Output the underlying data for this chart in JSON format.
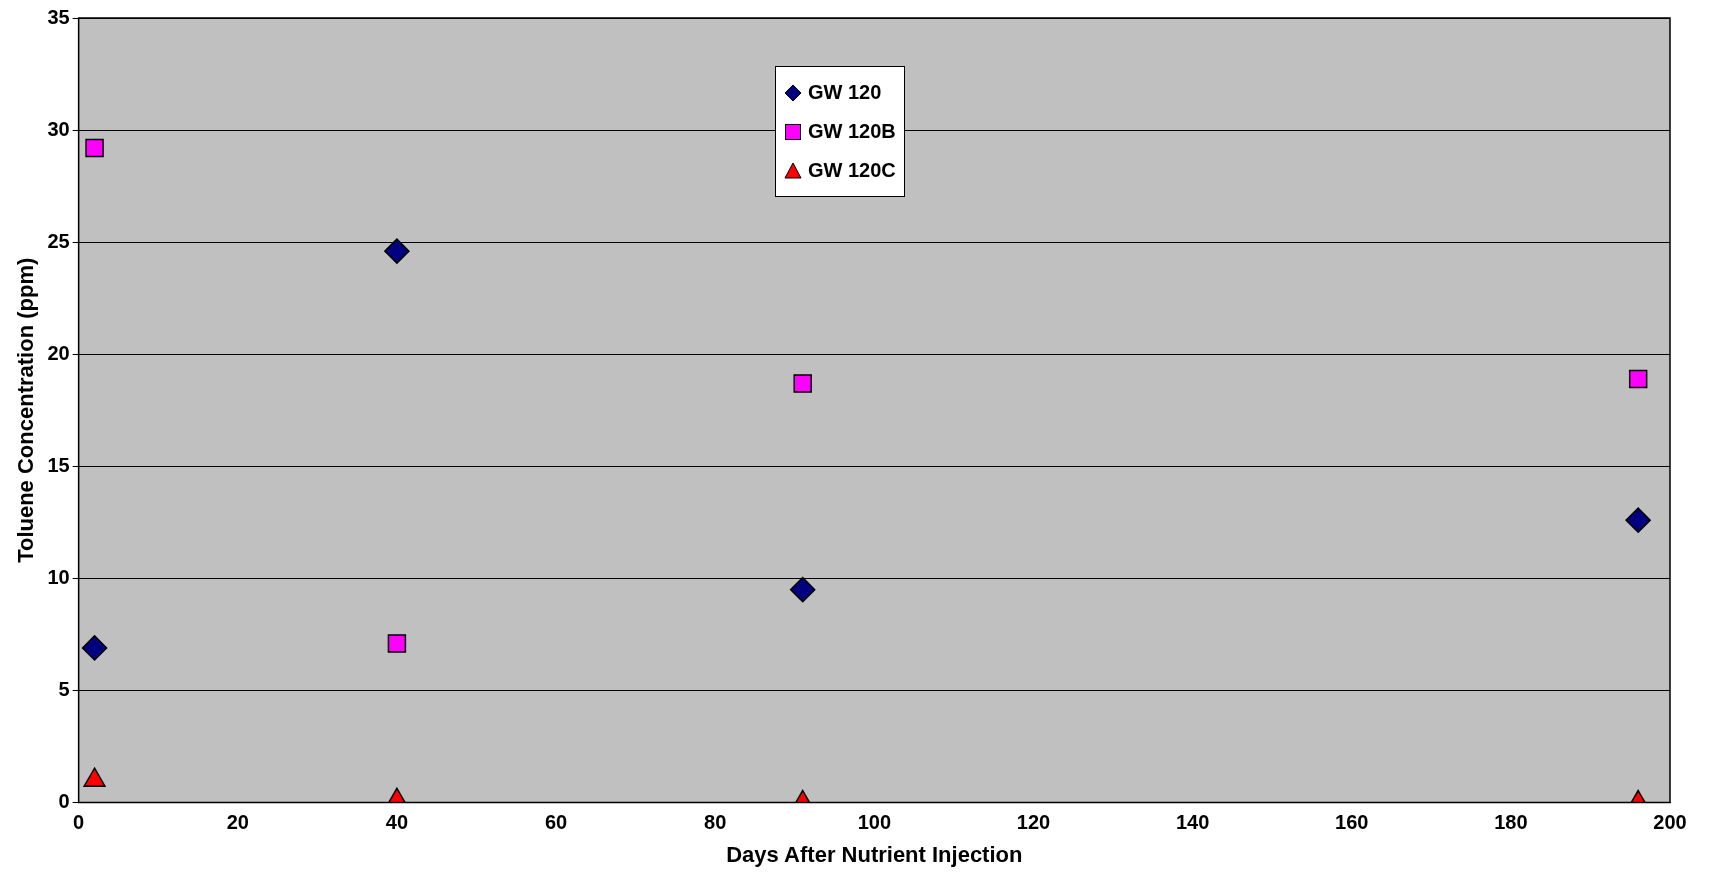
{
  "chart_data": {
    "type": "scatter",
    "xlabel": "Days After Nutrient Injection",
    "ylabel": "Toluene Concentration (ppm)",
    "xlim": [
      0,
      200
    ],
    "xticks": [
      0,
      20,
      40,
      60,
      80,
      100,
      120,
      140,
      160,
      180,
      200
    ],
    "ylim": [
      0,
      35
    ],
    "yticks": [
      0,
      5,
      10,
      15,
      20,
      25,
      30,
      35
    ],
    "grid": "y",
    "legend": "top",
    "series": [
      {
        "name": "GW 120",
        "color": "#000080",
        "marker": "diamond",
        "x": [
          2,
          40,
          91,
          196
        ],
        "values": [
          6.9,
          24.6,
          9.5,
          12.6
        ]
      },
      {
        "name": "GW 120B",
        "color": "#ff00ff",
        "marker": "square",
        "x": [
          2,
          40,
          91,
          196
        ],
        "values": [
          29.2,
          7.1,
          18.7,
          18.9
        ]
      },
      {
        "name": "GW 120C",
        "color": "#ff0000",
        "marker": "triangle",
        "x": [
          2,
          40,
          91,
          196
        ],
        "values": [
          1.0,
          0.1,
          0,
          0
        ]
      }
    ]
  }
}
